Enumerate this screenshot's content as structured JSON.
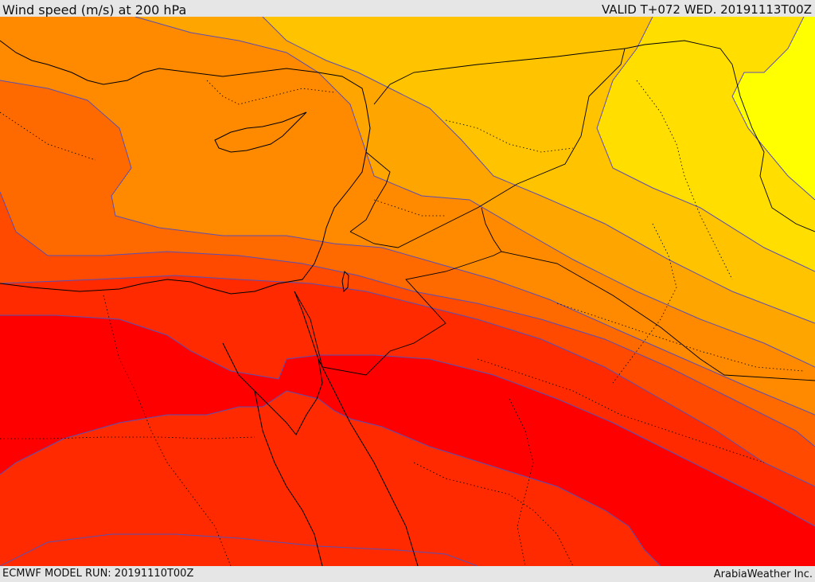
{
  "header": {
    "title": "Wind speed (m/s) at 200 hPa",
    "valid_time": "VALID T+072 WED. 20191113T00Z"
  },
  "footer": {
    "model_run": "ECMWF MODEL RUN: 20191110T00Z",
    "credit": "ArabiaWeather Inc."
  },
  "map": {
    "variable": "wind speed",
    "units": "m/s",
    "pressure_level_hPa": 200,
    "bands": [
      {
        "id": "band-1",
        "color": "#ffff00"
      },
      {
        "id": "band-2",
        "color": "#ffde00"
      },
      {
        "id": "band-3",
        "color": "#ffc300"
      },
      {
        "id": "band-4",
        "color": "#ffa500"
      },
      {
        "id": "band-5",
        "color": "#ff8a00"
      },
      {
        "id": "band-6",
        "color": "#ff6a00"
      },
      {
        "id": "band-7",
        "color": "#ff4a00"
      },
      {
        "id": "band-8",
        "color": "#ff2a00"
      },
      {
        "id": "band-9",
        "color": "#ff0000"
      }
    ],
    "contour_color": "#5a4fb4",
    "border_color": "#000000"
  }
}
